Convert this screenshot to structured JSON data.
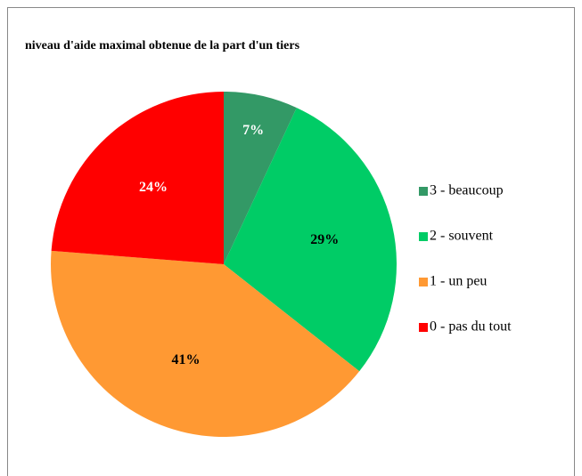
{
  "chart_data": {
    "type": "pie",
    "title": "niveau d'aide maximal obtenue de la part d'un tiers",
    "categories": [
      "3 - beaucoup",
      "2 - souvent",
      "1 - un peu",
      "0 - pas du tout"
    ],
    "values": [
      7,
      29,
      41,
      24
    ],
    "value_labels": [
      "7%",
      "29%",
      "41%",
      "24%"
    ],
    "colors": [
      "#339966",
      "#00cc66",
      "#ff9933",
      "#ff0000"
    ],
    "label_colors": [
      "#ffffff",
      "#000000",
      "#000000",
      "#ffffff"
    ],
    "legend": "right"
  }
}
